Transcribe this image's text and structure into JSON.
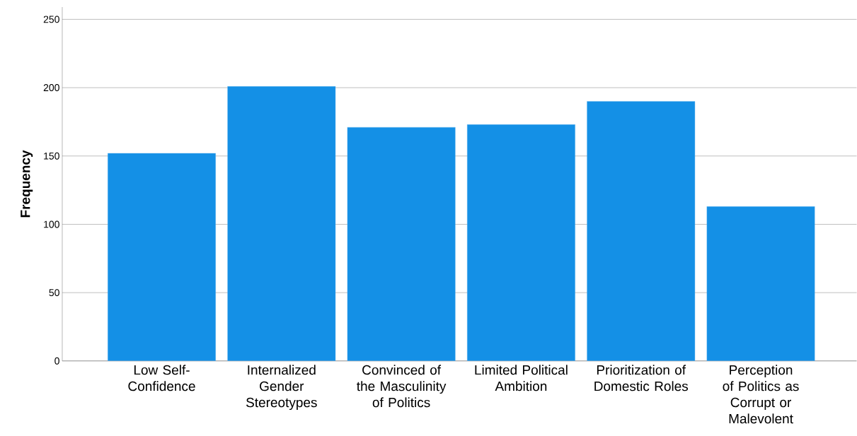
{
  "chart_data": {
    "type": "bar",
    "ylabel": "Frequency",
    "categories": [
      "Low Self-Confidence",
      "Internalized Gender Stereotypes",
      "Convinced of the Masculinity of Politics",
      "Limited Political Ambition",
      "Prioritization of Domestic Roles",
      "Perception of Politics as Corrupt or Malevolent"
    ],
    "values": [
      152,
      201,
      171,
      173,
      190,
      113
    ],
    "color": "#1490e6",
    "ylim": [
      0,
      259
    ],
    "yticks": [
      0,
      50,
      100,
      150,
      200,
      250
    ],
    "grid": "y"
  }
}
